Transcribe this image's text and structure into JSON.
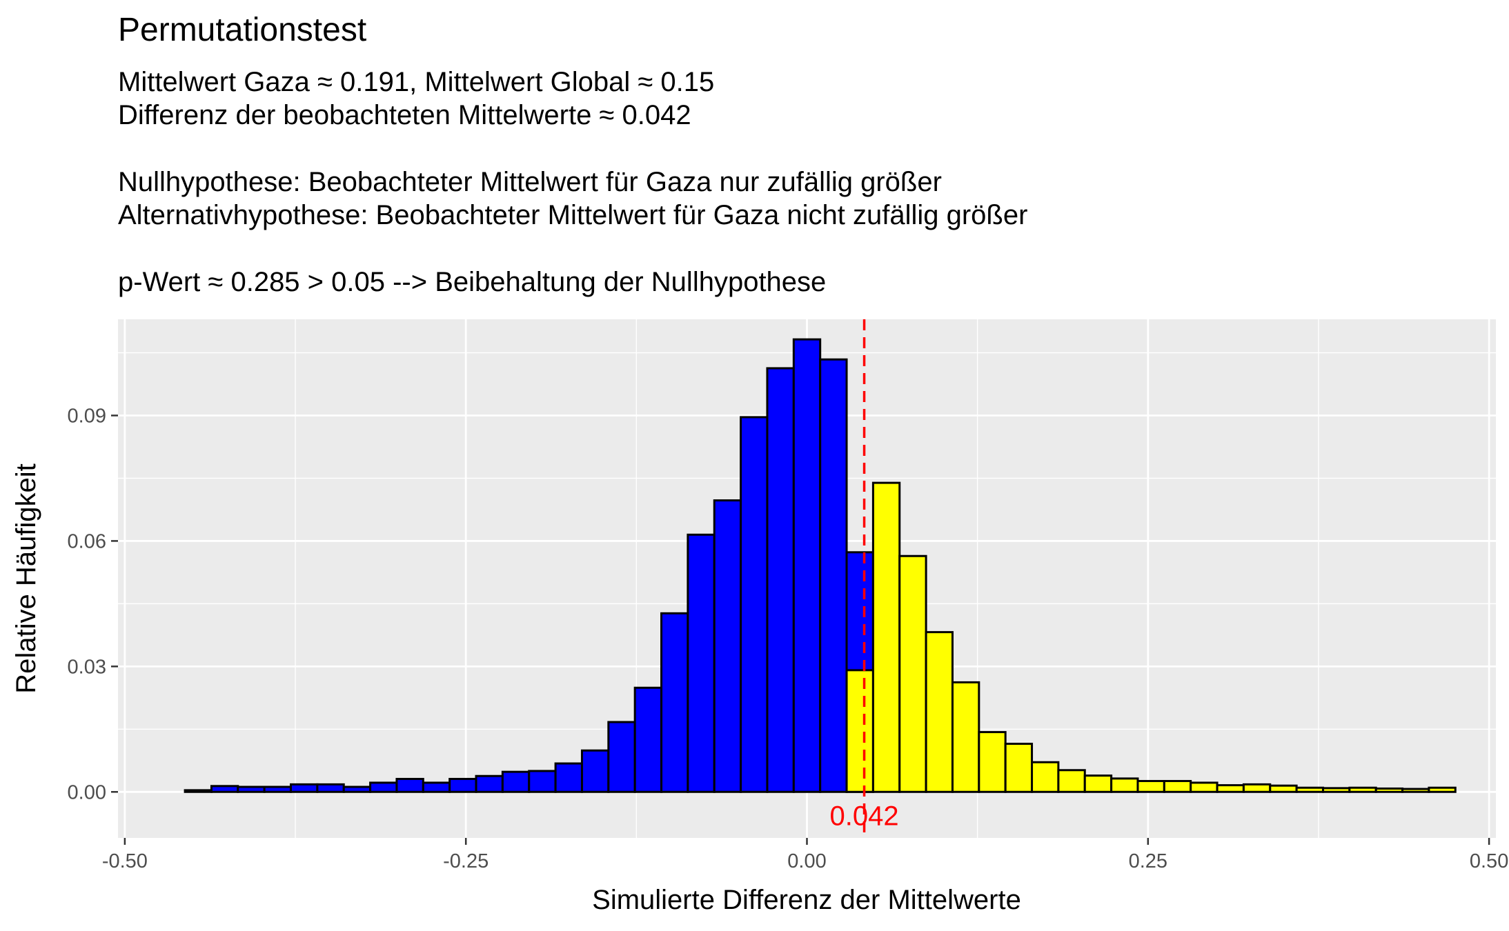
{
  "chart_data": {
    "type": "bar",
    "title": "Permutationstest",
    "subtitle_lines": [
      "Mittelwert Gaza ≈ 0.191, Mittelwert Global ≈ 0.15",
      "Differenz der beobachteten Mittelwerte ≈ 0.042",
      "",
      "Nullhypothese: Beobachteter Mittelwert für Gaza nur zufällig größer",
      "Alternativhypothese: Beobachteter Mittelwert für Gaza nicht zufällig größer",
      "",
      "p-Wert ≈ 0.285 > 0.05 --> Beibehaltung der Nullhypothese"
    ],
    "xlabel": "Simulierte Differenz der Mittelwerte",
    "ylabel": "Relative Häufigkeit",
    "xlim": [
      -0.505,
      0.505
    ],
    "ylim": [
      -0.011,
      0.113
    ],
    "xticks": [
      -0.5,
      -0.25,
      0.0,
      0.25,
      0.5
    ],
    "xtick_labels": [
      "-0.50",
      "-0.25",
      "0.00",
      "0.25",
      "0.50"
    ],
    "yticks": [
      0.0,
      0.03,
      0.06,
      0.09
    ],
    "ytick_labels": [
      "0.00",
      "0.03",
      "0.06",
      "0.09"
    ],
    "grid": true,
    "background_color": "#ebebeb",
    "grid_color": "#ffffff",
    "observed_difference": 0.042,
    "observed_difference_label": "0.042",
    "bin_width": 0.0194,
    "bins": [
      {
        "x": -0.4462,
        "below": 0.0004,
        "above": 0
      },
      {
        "x": -0.4268,
        "below": 0.0014,
        "above": 0
      },
      {
        "x": -0.4074,
        "below": 0.0012,
        "above": 0
      },
      {
        "x": -0.388,
        "below": 0.0012,
        "above": 0
      },
      {
        "x": -0.3686,
        "below": 0.0018,
        "above": 0
      },
      {
        "x": -0.3492,
        "below": 0.0018,
        "above": 0
      },
      {
        "x": -0.3298,
        "below": 0.0012,
        "above": 0
      },
      {
        "x": -0.3104,
        "below": 0.0022,
        "above": 0
      },
      {
        "x": -0.291,
        "below": 0.0031,
        "above": 0
      },
      {
        "x": -0.2716,
        "below": 0.0022,
        "above": 0
      },
      {
        "x": -0.2522,
        "below": 0.0031,
        "above": 0
      },
      {
        "x": -0.2328,
        "below": 0.0038,
        "above": 0
      },
      {
        "x": -0.2134,
        "below": 0.0048,
        "above": 0
      },
      {
        "x": -0.194,
        "below": 0.005,
        "above": 0
      },
      {
        "x": -0.1746,
        "below": 0.0068,
        "above": 0
      },
      {
        "x": -0.1552,
        "below": 0.0099,
        "above": 0
      },
      {
        "x": -0.1358,
        "below": 0.0167,
        "above": 0
      },
      {
        "x": -0.1164,
        "below": 0.0249,
        "above": 0
      },
      {
        "x": -0.097,
        "below": 0.0427,
        "above": 0
      },
      {
        "x": -0.0776,
        "below": 0.0615,
        "above": 0
      },
      {
        "x": -0.0582,
        "below": 0.0697,
        "above": 0
      },
      {
        "x": -0.0388,
        "below": 0.0896,
        "above": 0
      },
      {
        "x": -0.0194,
        "below": 0.1013,
        "above": 0
      },
      {
        "x": 0.0,
        "below": 0.1082,
        "above": 0
      },
      {
        "x": 0.0194,
        "below": 0.1034,
        "above": 0
      },
      {
        "x": 0.0388,
        "below": 0.0573,
        "above": 0.0291
      },
      {
        "x": 0.0582,
        "below": 0,
        "above": 0.0739
      },
      {
        "x": 0.0776,
        "below": 0,
        "above": 0.0564
      },
      {
        "x": 0.097,
        "below": 0,
        "above": 0.0382
      },
      {
        "x": 0.1164,
        "below": 0,
        "above": 0.0262
      },
      {
        "x": 0.1358,
        "below": 0,
        "above": 0.0143
      },
      {
        "x": 0.1552,
        "below": 0,
        "above": 0.0115
      },
      {
        "x": 0.1746,
        "below": 0,
        "above": 0.0071
      },
      {
        "x": 0.194,
        "below": 0,
        "above": 0.0052
      },
      {
        "x": 0.2134,
        "below": 0,
        "above": 0.0039
      },
      {
        "x": 0.2328,
        "below": 0,
        "above": 0.0032
      },
      {
        "x": 0.2522,
        "below": 0,
        "above": 0.0026
      },
      {
        "x": 0.2716,
        "below": 0,
        "above": 0.0026
      },
      {
        "x": 0.291,
        "below": 0,
        "above": 0.0022
      },
      {
        "x": 0.3104,
        "below": 0,
        "above": 0.0016
      },
      {
        "x": 0.3298,
        "below": 0,
        "above": 0.0018
      },
      {
        "x": 0.3492,
        "below": 0,
        "above": 0.0015
      },
      {
        "x": 0.3686,
        "below": 0,
        "above": 0.001
      },
      {
        "x": 0.388,
        "below": 0,
        "above": 0.0009
      },
      {
        "x": 0.4074,
        "below": 0,
        "above": 0.001
      },
      {
        "x": 0.4268,
        "below": 0,
        "above": 0.0008
      },
      {
        "x": 0.4462,
        "below": 0,
        "above": 0.0007
      },
      {
        "x": 0.4656,
        "below": 0,
        "above": 0.001
      }
    ],
    "colors": {
      "below_observed": "#0000ff",
      "above_observed": "#ffff00",
      "bar_outline": "#000000",
      "observed_line": "#ff0000"
    }
  }
}
